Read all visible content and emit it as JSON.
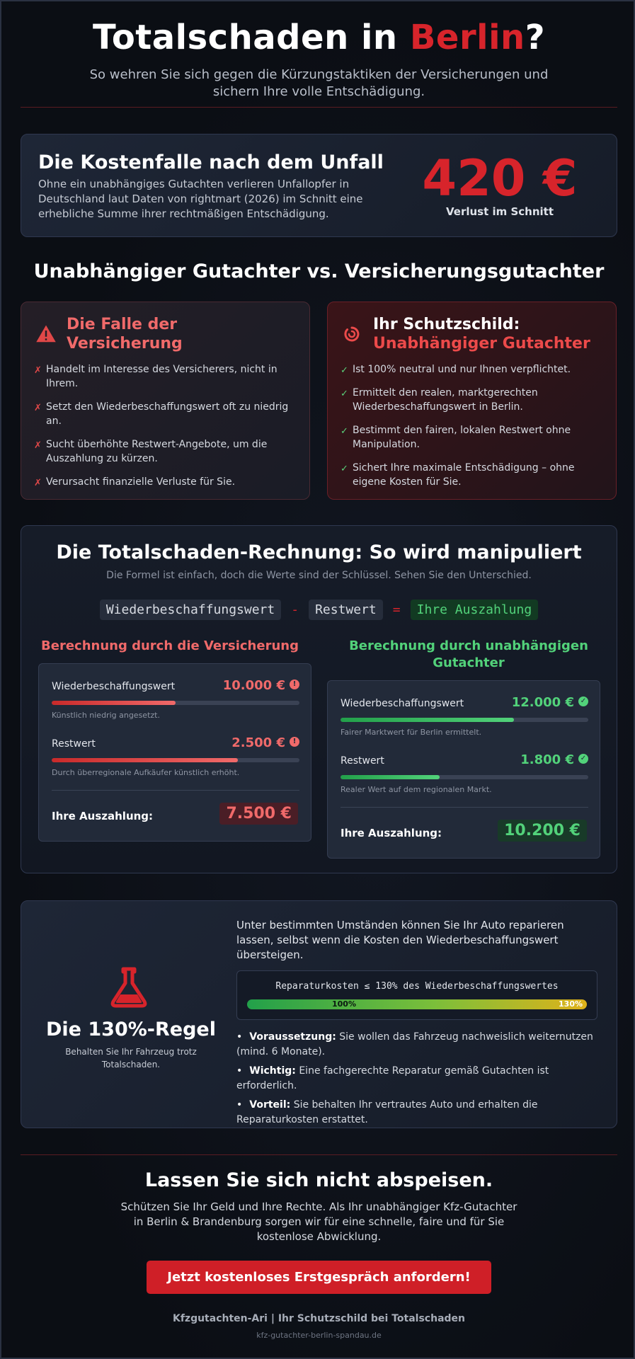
{
  "header": {
    "title_pre": "Totalschaden in ",
    "title_accent": "Berlin",
    "title_post": "?",
    "subtitle": "So wehren Sie sich gegen die Kürzungstaktiken der Versicherungen und sichern Ihre volle Entschädigung."
  },
  "cost": {
    "title": "Die Kostenfalle nach dem Unfall",
    "description": "Ohne ein unabhängiges Gutachten verlieren Unfallopfer in Deutschland laut Daten von rightmart (2026) im Schnitt eine erhebliche Summe ihrer rechtmäßigen Entschädigung.",
    "amount": "420 €",
    "amount_label": "Verlust im Schnitt"
  },
  "comparison": {
    "title": "Unabhängiger Gutachter vs. Versicherungsgutachter",
    "left": {
      "title": "Die Falle der Versicherung",
      "icon": "warning-icon",
      "items": [
        "Handelt im Interesse des Versicherers, nicht in Ihrem.",
        "Setzt den Wiederbeschaffungswert oft zu niedrig an.",
        "Sucht überhöhte Restwert-Angebote, um die Auszahlung zu kürzen.",
        "Verursacht finanzielle Verluste für Sie."
      ]
    },
    "right": {
      "title_line1": "Ihr Schutzschild:",
      "title_line2": "Unabhängiger Gutachter",
      "icon": "shield-icon",
      "items": [
        "Ist 100% neutral und nur Ihnen verpflichtet.",
        "Ermittelt den realen, marktgerechten Wiederbeschaffungswert in Berlin.",
        "Bestimmt den fairen, lokalen Restwert ohne Manipulation.",
        "Sichert Ihre maximale Entschädigung – ohne eigene Kosten für Sie."
      ]
    },
    "mark_cross": "✗",
    "mark_check": "✓"
  },
  "calculation": {
    "title": "Die Totalschaden-Rechnung: So wird manipuliert",
    "subtitle": "Die Formel ist einfach, doch die Werte sind der Schlüssel. Sehen Sie den Unterschied.",
    "formula": {
      "term1": "Wiederbeschaffungswert",
      "op1": "-",
      "term2": "Restwert",
      "op2": "=",
      "result": "Ihre Auszahlung"
    },
    "insurer": {
      "title": "Berechnung durch die Versicherung",
      "rows": [
        {
          "label": "Wiederbeschaffungswert",
          "value": "10.000 €",
          "fill": 0.5,
          "note": "Künstlich niedrig angesetzt."
        },
        {
          "label": "Restwert",
          "value": "2.500 €",
          "fill": 0.75,
          "note": "Durch überregionale Aufkäufer künstlich erhöht."
        }
      ],
      "payout_label": "Ihre Auszahlung:",
      "payout_value": "7.500 €",
      "status_icon": "alert-circle-icon"
    },
    "independent": {
      "title": "Berechnung durch unabhängigen Gutachter",
      "rows": [
        {
          "label": "Wiederbeschaffungswert",
          "value": "12.000 €",
          "fill": 0.7,
          "note": "Fairer Marktwert für Berlin ermittelt."
        },
        {
          "label": "Restwert",
          "value": "1.800 €",
          "fill": 0.4,
          "note": "Realer Wert auf dem regionalen Markt."
        }
      ],
      "payout_label": "Ihre Auszahlung:",
      "payout_value": "10.200 €",
      "status_icon": "check-circle-icon"
    }
  },
  "rule130": {
    "title": "Die 130%-Regel",
    "subtitle": "Behalten Sie Ihr Fahrzeug trotz Totalschaden.",
    "icon": "flask-icon",
    "intro": "Unter bestimmten Umständen können Sie Ihr Auto reparieren lassen, selbst wenn die Kosten den Wiederbeschaffungswert übersteigen.",
    "scale_caption": "Reparaturkosten ≤ 130% des Wiederbeschaffungswertes",
    "scale_left": "100%",
    "scale_right": "130%",
    "bullets": [
      {
        "bold": "Voraussetzung:",
        "text": " Sie wollen das Fahrzeug nachweislich weiternutzen (mind. 6 Monate)."
      },
      {
        "bold": "Wichtig:",
        "text": " Eine fachgerechte Reparatur gemäß Gutachten ist erforderlich."
      },
      {
        "bold": "Vorteil:",
        "text": " Sie behalten Ihr vertrautes Auto und erhalten die Reparaturkosten erstattet."
      }
    ]
  },
  "cta": {
    "title": "Lassen Sie sich nicht abspeisen.",
    "text": "Schützen Sie Ihr Geld und Ihre Rechte. Als Ihr unabhängiger Kfz-Gutachter in Berlin & Brandenburg sorgen wir für eine schnelle, faire und für Sie kostenlose Abwicklung.",
    "button": "Jetzt kostenloses Erstgespräch anfordern!"
  },
  "footer": {
    "brand": "Kfzgutachten-Ari | Ihr Schutzschild bei Totalschaden",
    "url": "kfz-gutachter-berlin-spandau.de"
  },
  "colors": {
    "accent_red": "#d7242b",
    "good_green": "#52d27a",
    "soft_red": "#f06a6a",
    "background": "#0b0e14"
  }
}
